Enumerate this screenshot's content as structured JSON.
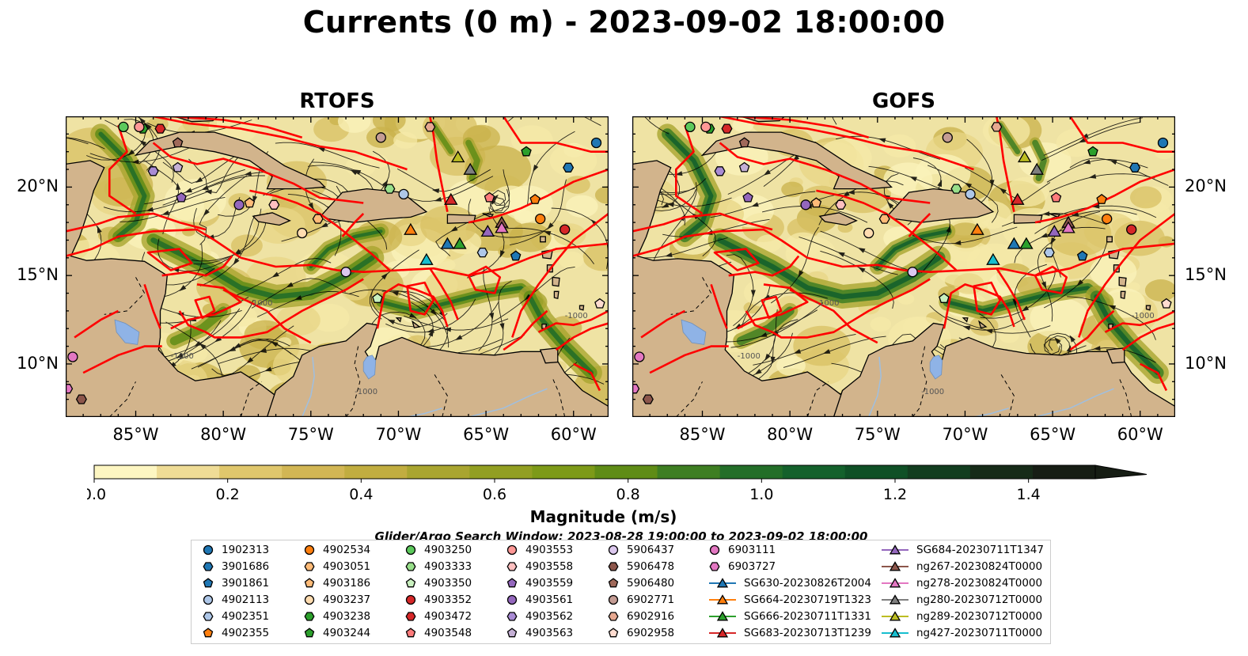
{
  "title": "Currents (0 m) - 2023-09-02 18:00:00",
  "panels": [
    {
      "title": "RTOFS"
    },
    {
      "title": "GOFS"
    }
  ],
  "map": {
    "lon_range": [
      -89,
      -58
    ],
    "lat_range": [
      7,
      24
    ],
    "lon_ticks": [
      "85°W",
      "80°W",
      "75°W",
      "70°W",
      "65°W",
      "60°W"
    ],
    "lat_ticks": [
      "20°N",
      "15°N",
      "10°N"
    ],
    "contour_label": "-1000",
    "land_color": "#d2b48c",
    "boundary_color": "#ff0000",
    "lake_color": "#8fb3e6"
  },
  "colorbar": {
    "label": "Magnitude (m/s)",
    "range": [
      0,
      1.5
    ],
    "extend": "max",
    "ticks": [
      "0.0",
      "0.2",
      "0.4",
      "0.6",
      "0.8",
      "1.0",
      "1.2",
      "1.4"
    ],
    "colors": [
      "#fdf6c2",
      "#efdc96",
      "#e0c76c",
      "#d2b654",
      "#c1ad40",
      "#a9a530",
      "#929f22",
      "#7d9a18",
      "#5f8c16",
      "#3e7e22",
      "#236e28",
      "#14612c",
      "#0f5026",
      "#123d1f",
      "#162b18",
      "#161d14"
    ]
  },
  "search_window": "Glider/Argo Search Window: 2023-08-28 19:00:00 to 2023-09-02 18:00:00",
  "legend": [
    {
      "label": "1902313",
      "marker": "circle",
      "color": "#1f77b4"
    },
    {
      "label": "3901686",
      "marker": "hexagon",
      "color": "#1f77b4"
    },
    {
      "label": "3901861",
      "marker": "pentagon",
      "color": "#1f77b4"
    },
    {
      "label": "4902113",
      "marker": "circle",
      "color": "#aec7e8"
    },
    {
      "label": "4902351",
      "marker": "hexagon",
      "color": "#aec7e8"
    },
    {
      "label": "4902355",
      "marker": "pentagon",
      "color": "#ff7f0e"
    },
    {
      "label": "4902534",
      "marker": "circle",
      "color": "#ff7f0e"
    },
    {
      "label": "4903051",
      "marker": "hexagon",
      "color": "#ffbb78"
    },
    {
      "label": "4903186",
      "marker": "pentagon",
      "color": "#ffbb78"
    },
    {
      "label": "4903237",
      "marker": "circle",
      "color": "#ffdcb0"
    },
    {
      "label": "4903238",
      "marker": "hexagon",
      "color": "#2ca02c"
    },
    {
      "label": "4903244",
      "marker": "pentagon",
      "color": "#2ca02c"
    },
    {
      "label": "4903250",
      "marker": "circle",
      "color": "#5cc95c"
    },
    {
      "label": "4903333",
      "marker": "hexagon",
      "color": "#98df8a"
    },
    {
      "label": "4903350",
      "marker": "pentagon",
      "color": "#c9f0bf"
    },
    {
      "label": "4903352",
      "marker": "circle",
      "color": "#d62728"
    },
    {
      "label": "4903472",
      "marker": "hexagon",
      "color": "#d62728"
    },
    {
      "label": "4903548",
      "marker": "pentagon",
      "color": "#ff7b7b"
    },
    {
      "label": "4903553",
      "marker": "circle",
      "color": "#ff9896"
    },
    {
      "label": "4903558",
      "marker": "hexagon",
      "color": "#ffc0c0"
    },
    {
      "label": "4903559",
      "marker": "pentagon",
      "color": "#9467bd"
    },
    {
      "label": "4903561",
      "marker": "circle",
      "color": "#9467bd"
    },
    {
      "label": "4903562",
      "marker": "hexagon",
      "color": "#a98bd4"
    },
    {
      "label": "4903563",
      "marker": "pentagon",
      "color": "#c5b0d5"
    },
    {
      "label": "5906437",
      "marker": "circle",
      "color": "#dcc8ee"
    },
    {
      "label": "5906478",
      "marker": "hexagon",
      "color": "#8c564b"
    },
    {
      "label": "5906480",
      "marker": "pentagon",
      "color": "#a0695a"
    },
    {
      "label": "6902771",
      "marker": "circle",
      "color": "#c49c94"
    },
    {
      "label": "6902916",
      "marker": "hexagon",
      "color": "#e6a890"
    },
    {
      "label": "6902958",
      "marker": "pentagon",
      "color": "#ffdcd0"
    },
    {
      "label": "6903111",
      "marker": "circle",
      "color": "#e377c2"
    },
    {
      "label": "6903727",
      "marker": "hexagon",
      "color": "#e377c2"
    },
    {
      "label": "SG630-20230826T2004",
      "marker": "triangle",
      "color": "#1f77b4",
      "line": true
    },
    {
      "label": "SG664-20230719T1323",
      "marker": "triangle",
      "color": "#ff7f0e",
      "line": true
    },
    {
      "label": "SG666-20230711T1331",
      "marker": "triangle",
      "color": "#2ca02c",
      "line": true
    },
    {
      "label": "SG683-20230713T1239",
      "marker": "triangle",
      "color": "#d62728",
      "line": true
    },
    {
      "label": "SG684-20230711T1347",
      "marker": "triangle",
      "color": "#9467bd",
      "line": true
    },
    {
      "label": "ng267-20230824T0000",
      "marker": "triangle",
      "color": "#8c564b",
      "line": true
    },
    {
      "label": "ng278-20230824T0000",
      "marker": "triangle",
      "color": "#e377c2",
      "line": true
    },
    {
      "label": "ng280-20230712T0000",
      "marker": "triangle",
      "color": "#7f7f7f",
      "line": true
    },
    {
      "label": "ng289-20230712T0000",
      "marker": "triangle",
      "color": "#bcbd22",
      "line": true
    },
    {
      "label": "ng427-20230711T0000",
      "marker": "triangle",
      "color": "#17becf",
      "line": true
    }
  ],
  "observations": [
    {
      "id": "1902313",
      "lon": -58.7,
      "lat": 22.5
    },
    {
      "id": "3901686",
      "lon": -60.3,
      "lat": 21.1
    },
    {
      "id": "3901861",
      "lon": -63.3,
      "lat": 16.1
    },
    {
      "id": "4902113",
      "lon": -69.7,
      "lat": 19.6
    },
    {
      "id": "4902351",
      "lon": -65.2,
      "lat": 16.3
    },
    {
      "id": "4902355",
      "lon": -62.2,
      "lat": 19.3
    },
    {
      "id": "4902534",
      "lon": -61.9,
      "lat": 18.2
    },
    {
      "id": "4903051",
      "lon": -74.6,
      "lat": 18.2
    },
    {
      "id": "4903186",
      "lon": -78.5,
      "lat": 19.1
    },
    {
      "id": "4903237",
      "lon": -75.5,
      "lat": 17.4
    },
    {
      "id": "4903238",
      "lon": -84.6,
      "lat": 23.3
    },
    {
      "id": "4903244",
      "lon": -62.7,
      "lat": 22.0
    },
    {
      "id": "4903250",
      "lon": -85.7,
      "lat": 23.4
    },
    {
      "id": "4903333",
      "lon": -70.5,
      "lat": 19.9
    },
    {
      "id": "4903350",
      "lon": -71.2,
      "lat": 13.7
    },
    {
      "id": "4903352",
      "lon": -60.5,
      "lat": 17.6
    },
    {
      "id": "4903472",
      "lon": -83.6,
      "lat": 23.3
    },
    {
      "id": "4903548",
      "lon": -64.8,
      "lat": 19.4
    },
    {
      "id": "4903553",
      "lon": -84.8,
      "lat": 23.4
    },
    {
      "id": "4903558",
      "lon": -77.1,
      "lat": 19.0
    },
    {
      "id": "4903559",
      "lon": -82.4,
      "lat": 19.4
    },
    {
      "id": "4903561",
      "lon": -79.1,
      "lat": 19.0
    },
    {
      "id": "4903562",
      "lon": -84.0,
      "lat": 20.9
    },
    {
      "id": "4903563",
      "lon": -82.6,
      "lat": 21.1
    },
    {
      "id": "5906437",
      "lon": -73.0,
      "lat": 15.2
    },
    {
      "id": "5906478",
      "lon": -88.1,
      "lat": 8.0
    },
    {
      "id": "5906480",
      "lon": -82.6,
      "lat": 22.5
    },
    {
      "id": "6902771",
      "lon": -71.0,
      "lat": 22.8
    },
    {
      "id": "6902916",
      "lon": -68.2,
      "lat": 23.4
    },
    {
      "id": "6902958",
      "lon": -58.5,
      "lat": 13.4
    },
    {
      "id": "6903111",
      "lon": -88.6,
      "lat": 10.4
    },
    {
      "id": "6903727",
      "lon": -88.9,
      "lat": 8.6
    },
    {
      "id": "SG630-20230826T2004",
      "lon": -67.2,
      "lat": 16.8
    },
    {
      "id": "SG664-20230719T1323",
      "lon": -69.3,
      "lat": 17.6
    },
    {
      "id": "SG666-20230711T1331",
      "lon": -66.5,
      "lat": 16.8
    },
    {
      "id": "SG683-20230713T1239",
      "lon": -67.0,
      "lat": 19.3
    },
    {
      "id": "SG684-20230711T1347",
      "lon": -64.9,
      "lat": 17.5
    },
    {
      "id": "ng267-20230824T0000",
      "lon": -64.1,
      "lat": 18.0
    },
    {
      "id": "ng278-20230824T0000",
      "lon": -64.1,
      "lat": 17.7
    },
    {
      "id": "ng280-20230712T0000",
      "lon": -65.9,
      "lat": 21.0
    },
    {
      "id": "ng289-20230712T0000",
      "lon": -66.6,
      "lat": 21.7
    },
    {
      "id": "ng427-20230711T0000",
      "lon": -68.4,
      "lat": 15.9
    }
  ]
}
